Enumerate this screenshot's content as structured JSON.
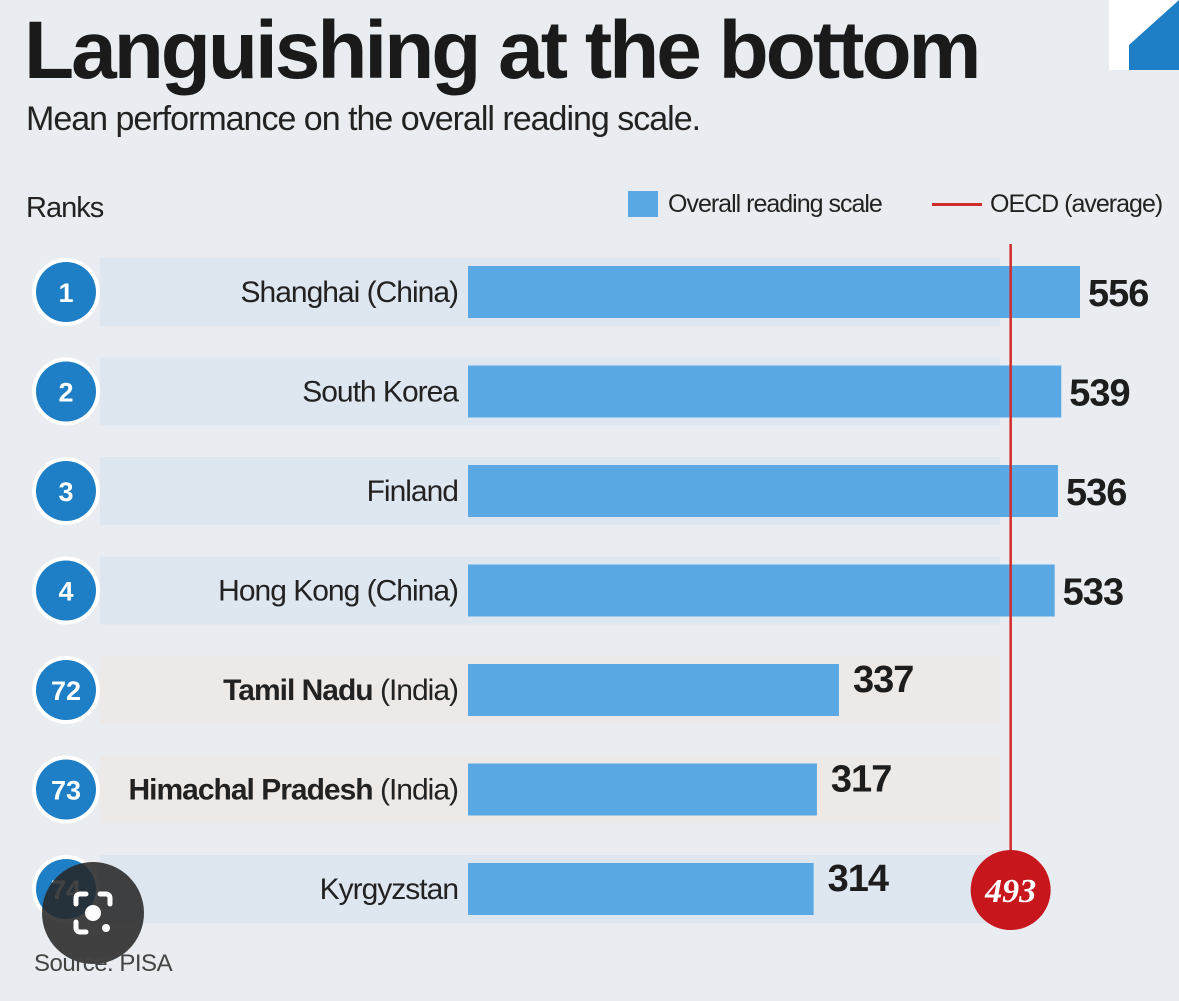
{
  "title": "Languishing at the bottom",
  "subtitle": "Mean performance on the overall reading scale.",
  "ranks_label": "Ranks",
  "legend": {
    "bar_label": "Overall reading scale",
    "line_label": "OECD (average)"
  },
  "source": "Source: PISA",
  "colors": {
    "bar": "#5aa9e4",
    "rank_circle": "#1e7fc6",
    "oecd_line": "#d22b2b",
    "oecd_badge": "#c8161d",
    "row_band_top": "#d8e4ef",
    "row_band_india": "#ede7e1"
  },
  "chart_data": {
    "type": "bar",
    "orientation": "horizontal",
    "categories": [
      {
        "rank": "1",
        "name": "Shanghai",
        "suffix": " (China)",
        "bold": false
      },
      {
        "rank": "2",
        "name": "South Korea",
        "suffix": "",
        "bold": false
      },
      {
        "rank": "3",
        "name": "Finland",
        "suffix": "",
        "bold": false
      },
      {
        "rank": "4",
        "name": "Hong Kong",
        "suffix": " (China)",
        "bold": false
      },
      {
        "rank": "72",
        "name": "Tamil Nadu",
        "suffix": " (India)",
        "bold": true
      },
      {
        "rank": "73",
        "name": "Himachal Pradesh",
        "suffix": " (India)",
        "bold": true
      },
      {
        "rank": "74",
        "name": "Kyrgyzstan",
        "suffix": "",
        "bold": false
      }
    ],
    "values": [
      556,
      539,
      536,
      533,
      337,
      317,
      314
    ],
    "reference_line": {
      "label": "OECD (average)",
      "value": 493
    },
    "xlim": [
      0,
      556
    ],
    "grid": false,
    "legend_position": "top-right"
  }
}
